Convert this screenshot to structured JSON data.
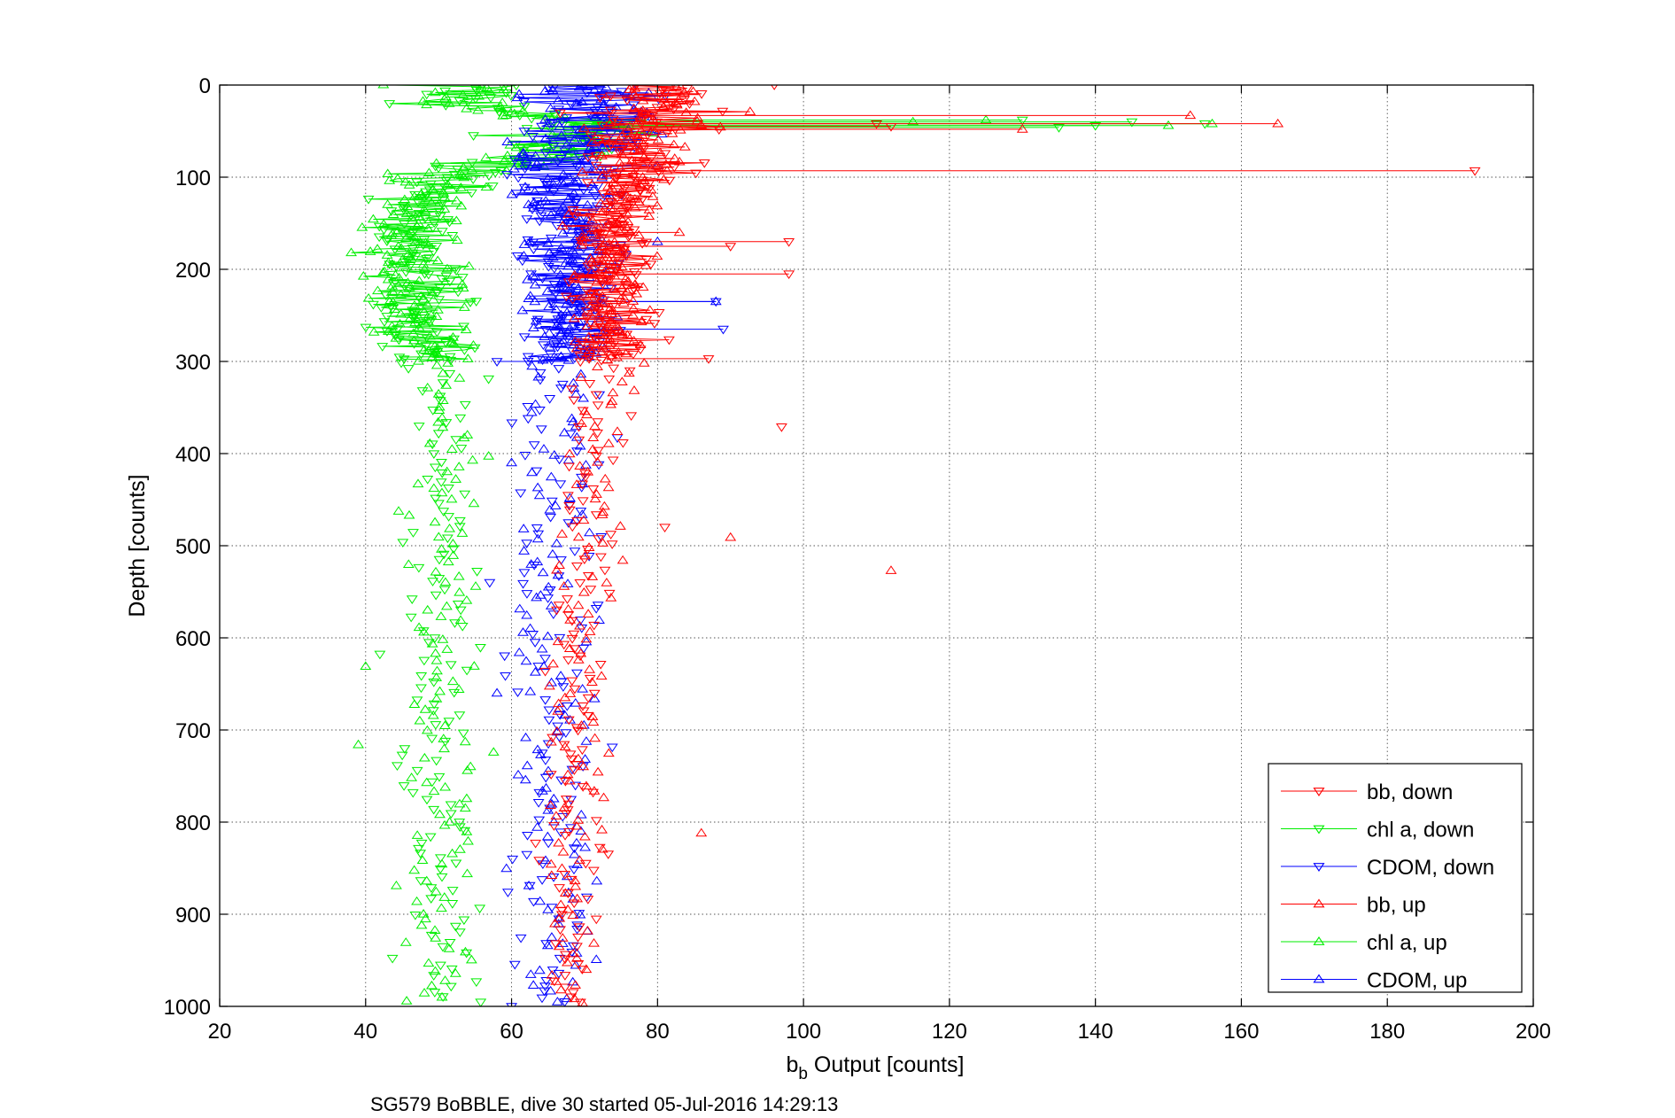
{
  "chart_data": {
    "type": "scatter",
    "xlabel": {
      "main": "b",
      "subscript": "b",
      "rest": " Output [counts]"
    },
    "ylabel": "Depth [counts]",
    "caption": "SG579 BoBBLE, dive 30 started 05-Jul-2016 14:29:13",
    "xlim": [
      20,
      200
    ],
    "ylim": [
      0,
      1000
    ],
    "y_reversed": true,
    "grid": true,
    "xticks": [
      20,
      40,
      60,
      80,
      100,
      120,
      140,
      160,
      180,
      200
    ],
    "yticks": [
      0,
      100,
      200,
      300,
      400,
      500,
      600,
      700,
      800,
      900,
      1000
    ],
    "legend_position": "bottom-right",
    "series": [
      {
        "name": "bb, down",
        "color": "#ff0000",
        "marker": "triangle-down",
        "lines_to_depth": 300,
        "profile": [
          [
            0,
            82
          ],
          [
            20,
            80
          ],
          [
            40,
            78
          ],
          [
            60,
            77
          ],
          [
            100,
            76
          ],
          [
            150,
            74
          ],
          [
            200,
            74
          ],
          [
            250,
            74
          ],
          [
            300,
            73
          ],
          [
            400,
            72
          ],
          [
            500,
            70
          ],
          [
            600,
            69
          ],
          [
            700,
            69
          ],
          [
            800,
            69
          ],
          [
            900,
            68
          ],
          [
            1000,
            68
          ]
        ],
        "spread": 4,
        "outliers": [
          [
            96,
            0
          ],
          [
            110,
            42
          ],
          [
            112,
            45
          ],
          [
            192,
            93
          ],
          [
            98,
            170
          ],
          [
            90,
            175
          ],
          [
            98,
            205
          ],
          [
            87,
            297
          ],
          [
            97,
            371
          ],
          [
            81,
            480
          ]
        ]
      },
      {
        "name": "chl a, down",
        "color": "#00ee00",
        "marker": "triangle-down",
        "lines_to_depth": 300,
        "profile": [
          [
            0,
            55
          ],
          [
            20,
            52
          ],
          [
            40,
            68
          ],
          [
            60,
            70
          ],
          [
            80,
            62
          ],
          [
            100,
            50
          ],
          [
            150,
            47
          ],
          [
            200,
            47
          ],
          [
            250,
            47
          ],
          [
            300,
            50
          ],
          [
            400,
            50
          ],
          [
            500,
            50
          ],
          [
            600,
            50
          ],
          [
            700,
            50
          ],
          [
            800,
            50
          ],
          [
            900,
            50
          ],
          [
            1000,
            50
          ]
        ],
        "spread": 5,
        "outliers": [
          [
            130,
            38
          ],
          [
            145,
            40
          ],
          [
            155,
            42
          ],
          [
            140,
            44
          ],
          [
            135,
            46
          ]
        ]
      },
      {
        "name": "CDOM, down",
        "color": "#0000ff",
        "marker": "triangle-down",
        "lines_to_depth": 300,
        "profile": [
          [
            0,
            70
          ],
          [
            20,
            71
          ],
          [
            40,
            72
          ],
          [
            60,
            71
          ],
          [
            100,
            67
          ],
          [
            150,
            67
          ],
          [
            200,
            68
          ],
          [
            250,
            68
          ],
          [
            300,
            68
          ],
          [
            400,
            66
          ],
          [
            500,
            66
          ],
          [
            600,
            66
          ],
          [
            700,
            66
          ],
          [
            800,
            66
          ],
          [
            900,
            66
          ],
          [
            1000,
            66
          ]
        ],
        "spread": 5,
        "outliers": [
          [
            89,
            265
          ],
          [
            88,
            235
          ],
          [
            58,
            300
          ],
          [
            57,
            540
          ],
          [
            60,
            1000
          ]
        ]
      },
      {
        "name": "bb, up",
        "color": "#ff0000",
        "marker": "triangle-up",
        "lines_to_depth": 300,
        "profile": [
          [
            0,
            80
          ],
          [
            20,
            80
          ],
          [
            40,
            78
          ],
          [
            60,
            77
          ],
          [
            100,
            76
          ],
          [
            150,
            74
          ],
          [
            200,
            74
          ],
          [
            250,
            74
          ],
          [
            300,
            73
          ],
          [
            400,
            72
          ],
          [
            500,
            71
          ],
          [
            600,
            69
          ],
          [
            700,
            69
          ],
          [
            800,
            69
          ],
          [
            900,
            68
          ],
          [
            1000,
            68
          ]
        ],
        "spread": 4,
        "outliers": [
          [
            153,
            33
          ],
          [
            165,
            42
          ],
          [
            130,
            48
          ],
          [
            112,
            527
          ],
          [
            90,
            491
          ],
          [
            86,
            812
          ],
          [
            83,
            160
          ]
        ]
      },
      {
        "name": "chl a, up",
        "color": "#00ee00",
        "marker": "triangle-up",
        "lines_to_depth": 300,
        "profile": [
          [
            0,
            57
          ],
          [
            20,
            54
          ],
          [
            40,
            70
          ],
          [
            60,
            70
          ],
          [
            80,
            60
          ],
          [
            100,
            50
          ],
          [
            150,
            46
          ],
          [
            200,
            46
          ],
          [
            250,
            46
          ],
          [
            300,
            50
          ],
          [
            400,
            50
          ],
          [
            500,
            50
          ],
          [
            600,
            50
          ],
          [
            700,
            50
          ],
          [
            800,
            50
          ],
          [
            900,
            50
          ],
          [
            1000,
            50
          ]
        ],
        "spread": 5,
        "outliers": [
          [
            156,
            42
          ],
          [
            150,
            44
          ],
          [
            125,
            38
          ],
          [
            115,
            40
          ],
          [
            39,
            716
          ],
          [
            40,
            631
          ]
        ]
      },
      {
        "name": "CDOM, up",
        "color": "#0000ff",
        "marker": "triangle-up",
        "lines_to_depth": 300,
        "profile": [
          [
            0,
            70
          ],
          [
            20,
            71
          ],
          [
            40,
            72
          ],
          [
            60,
            70
          ],
          [
            100,
            67
          ],
          [
            150,
            67
          ],
          [
            200,
            68
          ],
          [
            250,
            68
          ],
          [
            300,
            68
          ],
          [
            400,
            66
          ],
          [
            500,
            66
          ],
          [
            600,
            66
          ],
          [
            700,
            66
          ],
          [
            800,
            66
          ],
          [
            900,
            66
          ],
          [
            1000,
            66
          ]
        ],
        "spread": 5,
        "outliers": [
          [
            88,
            235
          ],
          [
            80,
            170
          ],
          [
            60,
            410
          ],
          [
            58,
            660
          ]
        ]
      }
    ]
  }
}
